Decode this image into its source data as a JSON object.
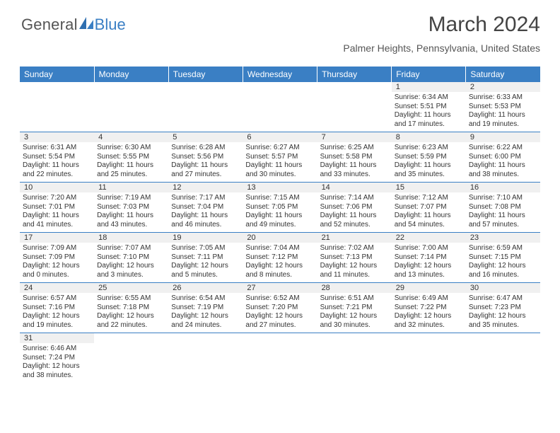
{
  "brand": {
    "text1": "General",
    "text2": "Blue"
  },
  "title": "March 2024",
  "location": "Palmer Heights, Pennsylvania, United States",
  "colors": {
    "accent": "#3a7fc4",
    "header_text": "#ffffff",
    "daynum_bg": "#f0f0f0",
    "text": "#333333",
    "background": "#ffffff"
  },
  "daysOfWeek": [
    "Sunday",
    "Monday",
    "Tuesday",
    "Wednesday",
    "Thursday",
    "Friday",
    "Saturday"
  ],
  "weeks": [
    [
      {
        "num": "",
        "sunrise": "",
        "sunset": "",
        "daylight": "",
        "empty": true
      },
      {
        "num": "",
        "sunrise": "",
        "sunset": "",
        "daylight": "",
        "empty": true
      },
      {
        "num": "",
        "sunrise": "",
        "sunset": "",
        "daylight": "",
        "empty": true
      },
      {
        "num": "",
        "sunrise": "",
        "sunset": "",
        "daylight": "",
        "empty": true
      },
      {
        "num": "",
        "sunrise": "",
        "sunset": "",
        "daylight": "",
        "empty": true
      },
      {
        "num": "1",
        "sunrise": "Sunrise: 6:34 AM",
        "sunset": "Sunset: 5:51 PM",
        "daylight": "Daylight: 11 hours and 17 minutes."
      },
      {
        "num": "2",
        "sunrise": "Sunrise: 6:33 AM",
        "sunset": "Sunset: 5:53 PM",
        "daylight": "Daylight: 11 hours and 19 minutes."
      }
    ],
    [
      {
        "num": "3",
        "sunrise": "Sunrise: 6:31 AM",
        "sunset": "Sunset: 5:54 PM",
        "daylight": "Daylight: 11 hours and 22 minutes."
      },
      {
        "num": "4",
        "sunrise": "Sunrise: 6:30 AM",
        "sunset": "Sunset: 5:55 PM",
        "daylight": "Daylight: 11 hours and 25 minutes."
      },
      {
        "num": "5",
        "sunrise": "Sunrise: 6:28 AM",
        "sunset": "Sunset: 5:56 PM",
        "daylight": "Daylight: 11 hours and 27 minutes."
      },
      {
        "num": "6",
        "sunrise": "Sunrise: 6:27 AM",
        "sunset": "Sunset: 5:57 PM",
        "daylight": "Daylight: 11 hours and 30 minutes."
      },
      {
        "num": "7",
        "sunrise": "Sunrise: 6:25 AM",
        "sunset": "Sunset: 5:58 PM",
        "daylight": "Daylight: 11 hours and 33 minutes."
      },
      {
        "num": "8",
        "sunrise": "Sunrise: 6:23 AM",
        "sunset": "Sunset: 5:59 PM",
        "daylight": "Daylight: 11 hours and 35 minutes."
      },
      {
        "num": "9",
        "sunrise": "Sunrise: 6:22 AM",
        "sunset": "Sunset: 6:00 PM",
        "daylight": "Daylight: 11 hours and 38 minutes."
      }
    ],
    [
      {
        "num": "10",
        "sunrise": "Sunrise: 7:20 AM",
        "sunset": "Sunset: 7:01 PM",
        "daylight": "Daylight: 11 hours and 41 minutes."
      },
      {
        "num": "11",
        "sunrise": "Sunrise: 7:19 AM",
        "sunset": "Sunset: 7:03 PM",
        "daylight": "Daylight: 11 hours and 43 minutes."
      },
      {
        "num": "12",
        "sunrise": "Sunrise: 7:17 AM",
        "sunset": "Sunset: 7:04 PM",
        "daylight": "Daylight: 11 hours and 46 minutes."
      },
      {
        "num": "13",
        "sunrise": "Sunrise: 7:15 AM",
        "sunset": "Sunset: 7:05 PM",
        "daylight": "Daylight: 11 hours and 49 minutes."
      },
      {
        "num": "14",
        "sunrise": "Sunrise: 7:14 AM",
        "sunset": "Sunset: 7:06 PM",
        "daylight": "Daylight: 11 hours and 52 minutes."
      },
      {
        "num": "15",
        "sunrise": "Sunrise: 7:12 AM",
        "sunset": "Sunset: 7:07 PM",
        "daylight": "Daylight: 11 hours and 54 minutes."
      },
      {
        "num": "16",
        "sunrise": "Sunrise: 7:10 AM",
        "sunset": "Sunset: 7:08 PM",
        "daylight": "Daylight: 11 hours and 57 minutes."
      }
    ],
    [
      {
        "num": "17",
        "sunrise": "Sunrise: 7:09 AM",
        "sunset": "Sunset: 7:09 PM",
        "daylight": "Daylight: 12 hours and 0 minutes."
      },
      {
        "num": "18",
        "sunrise": "Sunrise: 7:07 AM",
        "sunset": "Sunset: 7:10 PM",
        "daylight": "Daylight: 12 hours and 3 minutes."
      },
      {
        "num": "19",
        "sunrise": "Sunrise: 7:05 AM",
        "sunset": "Sunset: 7:11 PM",
        "daylight": "Daylight: 12 hours and 5 minutes."
      },
      {
        "num": "20",
        "sunrise": "Sunrise: 7:04 AM",
        "sunset": "Sunset: 7:12 PM",
        "daylight": "Daylight: 12 hours and 8 minutes."
      },
      {
        "num": "21",
        "sunrise": "Sunrise: 7:02 AM",
        "sunset": "Sunset: 7:13 PM",
        "daylight": "Daylight: 12 hours and 11 minutes."
      },
      {
        "num": "22",
        "sunrise": "Sunrise: 7:00 AM",
        "sunset": "Sunset: 7:14 PM",
        "daylight": "Daylight: 12 hours and 13 minutes."
      },
      {
        "num": "23",
        "sunrise": "Sunrise: 6:59 AM",
        "sunset": "Sunset: 7:15 PM",
        "daylight": "Daylight: 12 hours and 16 minutes."
      }
    ],
    [
      {
        "num": "24",
        "sunrise": "Sunrise: 6:57 AM",
        "sunset": "Sunset: 7:16 PM",
        "daylight": "Daylight: 12 hours and 19 minutes."
      },
      {
        "num": "25",
        "sunrise": "Sunrise: 6:55 AM",
        "sunset": "Sunset: 7:18 PM",
        "daylight": "Daylight: 12 hours and 22 minutes."
      },
      {
        "num": "26",
        "sunrise": "Sunrise: 6:54 AM",
        "sunset": "Sunset: 7:19 PM",
        "daylight": "Daylight: 12 hours and 24 minutes."
      },
      {
        "num": "27",
        "sunrise": "Sunrise: 6:52 AM",
        "sunset": "Sunset: 7:20 PM",
        "daylight": "Daylight: 12 hours and 27 minutes."
      },
      {
        "num": "28",
        "sunrise": "Sunrise: 6:51 AM",
        "sunset": "Sunset: 7:21 PM",
        "daylight": "Daylight: 12 hours and 30 minutes."
      },
      {
        "num": "29",
        "sunrise": "Sunrise: 6:49 AM",
        "sunset": "Sunset: 7:22 PM",
        "daylight": "Daylight: 12 hours and 32 minutes."
      },
      {
        "num": "30",
        "sunrise": "Sunrise: 6:47 AM",
        "sunset": "Sunset: 7:23 PM",
        "daylight": "Daylight: 12 hours and 35 minutes."
      }
    ],
    [
      {
        "num": "31",
        "sunrise": "Sunrise: 6:46 AM",
        "sunset": "Sunset: 7:24 PM",
        "daylight": "Daylight: 12 hours and 38 minutes."
      },
      {
        "num": "",
        "sunrise": "",
        "sunset": "",
        "daylight": "",
        "empty": true
      },
      {
        "num": "",
        "sunrise": "",
        "sunset": "",
        "daylight": "",
        "empty": true
      },
      {
        "num": "",
        "sunrise": "",
        "sunset": "",
        "daylight": "",
        "empty": true
      },
      {
        "num": "",
        "sunrise": "",
        "sunset": "",
        "daylight": "",
        "empty": true
      },
      {
        "num": "",
        "sunrise": "",
        "sunset": "",
        "daylight": "",
        "empty": true
      },
      {
        "num": "",
        "sunrise": "",
        "sunset": "",
        "daylight": "",
        "empty": true
      }
    ]
  ]
}
